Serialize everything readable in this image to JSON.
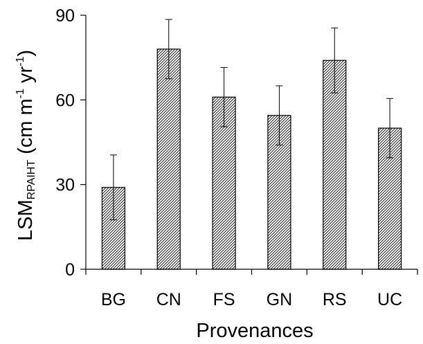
{
  "chart_data": {
    "type": "bar",
    "categories": [
      "BG",
      "CN",
      "FS",
      "GN",
      "RS",
      "UC"
    ],
    "values": [
      29,
      78,
      61,
      54.5,
      74,
      50
    ],
    "errors": [
      11.5,
      10.5,
      10.5,
      10.5,
      11.5,
      10.5
    ],
    "ylim": [
      0,
      90
    ],
    "yticks": [
      "0",
      "30",
      "60",
      "90"
    ],
    "xlabel": "Provenances",
    "ylabel": {
      "main": "LSM",
      "subscript": "RPAIHT",
      "unit_prefix": " (cm m",
      "exp1": "-1",
      "unit_mid": " yr",
      "exp2": "-1",
      "unit_suffix": ")"
    },
    "bar_fill": "diagonal hatch",
    "colors": {
      "bar_stroke": "#000000",
      "hatch": "#000000",
      "background": "#ffffff"
    },
    "grid": false,
    "legend": "none"
  }
}
